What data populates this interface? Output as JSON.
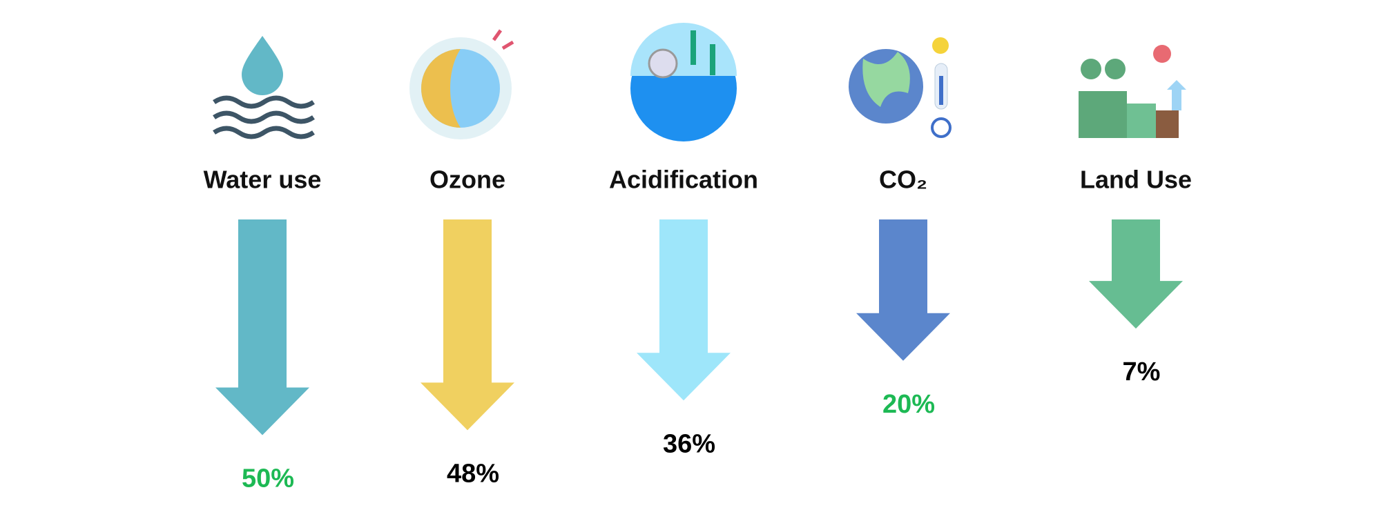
{
  "chart_data": {
    "type": "arrow",
    "categories": [
      "Water use",
      "Ozone",
      "Acidification",
      "CO₂",
      "Land Use"
    ],
    "values": [
      50,
      48,
      36,
      20,
      7
    ],
    "value_labels": [
      "50%",
      "48%",
      "36%",
      "20%",
      "7%"
    ],
    "colors": [
      "#62b8c7",
      "#f0d060",
      "#9ee6fa",
      "#5b86cc",
      "#66bd92"
    ],
    "value_label_colors": [
      "#1db954",
      "#000000",
      "#000000",
      "#1db954",
      "#000000"
    ]
  }
}
